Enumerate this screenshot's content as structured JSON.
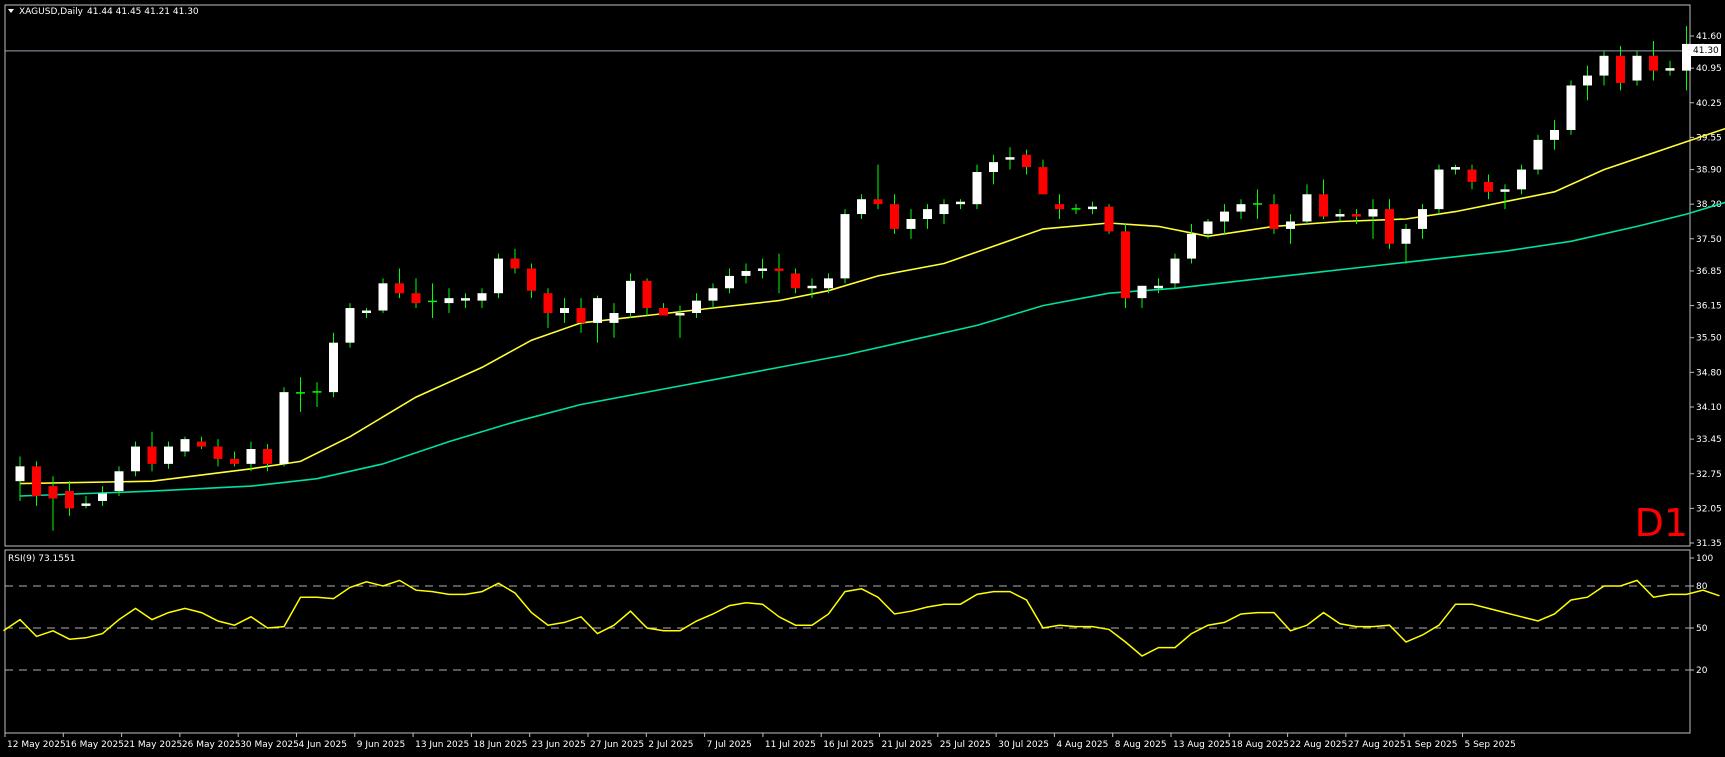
{
  "header": {
    "symbol_menu_icon": "triangle-down-icon",
    "title": "XAGUSD,Daily",
    "ohlc": "41.44 41.45 41.21 41.30"
  },
  "timeframe_label": "D1",
  "current_price_label": "41.30",
  "rsi_panel": {
    "title": "RSI(9) 73.1551"
  },
  "colors": {
    "background": "#000000",
    "bull": "#ffffff",
    "bear": "#ff0000",
    "doji": "#00ff00",
    "ma_fast": "#ffff33",
    "ma_slow": "#00e0a0",
    "rsi": "#ffff00",
    "frame": "#c0c0c0",
    "timeframe_label": "#ff0000"
  },
  "chart_data": [
    {
      "type": "candlestick",
      "symbol": "XAGUSD",
      "timeframe": "Daily",
      "ylim": [
        31.35,
        41.6
      ],
      "yticks": [
        "41.60",
        "40.95",
        "40.25",
        "39.55",
        "38.90",
        "38.20",
        "37.50",
        "36.85",
        "36.15",
        "35.50",
        "34.80",
        "34.10",
        "33.45",
        "32.75",
        "32.05",
        "31.35"
      ],
      "xlabels": [
        "12 May 2025",
        "16 May 2025",
        "21 May 2025",
        "26 May 2025",
        "30 May 2025",
        "4 Jun 2025",
        "9 Jun 2025",
        "13 Jun 2025",
        "18 Jun 2025",
        "23 Jun 2025",
        "27 Jun 2025",
        "2 Jul 2025",
        "7 Jul 2025",
        "11 Jul 2025",
        "16 Jul 2025",
        "21 Jul 2025",
        "25 Jul 2025",
        "30 Jul 2025",
        "4 Aug 2025",
        "8 Aug 2025",
        "13 Aug 2025",
        "18 Aug 2025",
        "22 Aug 2025",
        "27 Aug 2025",
        "1 Sep 2025",
        "5 Sep 2025"
      ],
      "current_price": 41.3,
      "candles": [
        {
          "o": 32.6,
          "h": 33.1,
          "l": 32.2,
          "c": 32.9
        },
        {
          "o": 32.9,
          "h": 33.0,
          "l": 32.1,
          "c": 32.3
        },
        {
          "o": 32.5,
          "h": 32.7,
          "l": 31.6,
          "c": 32.25
        },
        {
          "o": 32.4,
          "h": 32.6,
          "l": 31.9,
          "c": 32.05
        },
        {
          "o": 32.1,
          "h": 32.3,
          "l": 32.05,
          "c": 32.15
        },
        {
          "o": 32.2,
          "h": 32.5,
          "l": 32.1,
          "c": 32.35
        },
        {
          "o": 32.4,
          "h": 32.9,
          "l": 32.3,
          "c": 32.8
        },
        {
          "o": 32.8,
          "h": 33.4,
          "l": 32.7,
          "c": 33.3
        },
        {
          "o": 33.3,
          "h": 33.6,
          "l": 32.8,
          "c": 32.95
        },
        {
          "o": 32.95,
          "h": 33.4,
          "l": 32.85,
          "c": 33.3
        },
        {
          "o": 33.2,
          "h": 33.5,
          "l": 33.1,
          "c": 33.45
        },
        {
          "o": 33.4,
          "h": 33.5,
          "l": 33.25,
          "c": 33.3
        },
        {
          "o": 33.3,
          "h": 33.45,
          "l": 32.9,
          "c": 33.05
        },
        {
          "o": 33.05,
          "h": 33.2,
          "l": 32.9,
          "c": 32.95
        },
        {
          "o": 32.95,
          "h": 33.4,
          "l": 32.8,
          "c": 33.25
        },
        {
          "o": 33.25,
          "h": 33.35,
          "l": 32.8,
          "c": 32.95
        },
        {
          "o": 32.95,
          "h": 34.5,
          "l": 32.9,
          "c": 34.4
        },
        {
          "o": 34.4,
          "h": 34.7,
          "l": 34.0,
          "c": 34.4
        },
        {
          "o": 34.4,
          "h": 34.6,
          "l": 34.1,
          "c": 34.42
        },
        {
          "o": 34.4,
          "h": 35.6,
          "l": 34.3,
          "c": 35.4
        },
        {
          "o": 35.4,
          "h": 36.2,
          "l": 35.3,
          "c": 36.1
        },
        {
          "o": 36.0,
          "h": 36.1,
          "l": 35.9,
          "c": 36.05
        },
        {
          "o": 36.05,
          "h": 36.7,
          "l": 36.0,
          "c": 36.6
        },
        {
          "o": 36.6,
          "h": 36.9,
          "l": 36.3,
          "c": 36.4
        },
        {
          "o": 36.4,
          "h": 36.7,
          "l": 36.1,
          "c": 36.2
        },
        {
          "o": 36.25,
          "h": 36.6,
          "l": 35.9,
          "c": 36.25
        },
        {
          "o": 36.2,
          "h": 36.5,
          "l": 36.0,
          "c": 36.3
        },
        {
          "o": 36.25,
          "h": 36.4,
          "l": 36.1,
          "c": 36.3
        },
        {
          "o": 36.25,
          "h": 36.5,
          "l": 36.1,
          "c": 36.4
        },
        {
          "o": 36.4,
          "h": 37.2,
          "l": 36.3,
          "c": 37.1
        },
        {
          "o": 37.1,
          "h": 37.3,
          "l": 36.8,
          "c": 36.9
        },
        {
          "o": 36.9,
          "h": 37.0,
          "l": 36.3,
          "c": 36.45
        },
        {
          "o": 36.4,
          "h": 36.5,
          "l": 35.7,
          "c": 36.0
        },
        {
          "o": 36.0,
          "h": 36.3,
          "l": 35.8,
          "c": 36.1
        },
        {
          "o": 36.1,
          "h": 36.3,
          "l": 35.6,
          "c": 35.8
        },
        {
          "o": 35.8,
          "h": 36.35,
          "l": 35.4,
          "c": 36.3
        },
        {
          "o": 35.8,
          "h": 36.2,
          "l": 35.5,
          "c": 36.0
        },
        {
          "o": 36.0,
          "h": 36.8,
          "l": 35.9,
          "c": 36.65
        },
        {
          "o": 36.65,
          "h": 36.7,
          "l": 35.95,
          "c": 36.1
        },
        {
          "o": 36.1,
          "h": 36.2,
          "l": 35.95,
          "c": 35.95
        },
        {
          "o": 35.95,
          "h": 36.15,
          "l": 35.5,
          "c": 36.0
        },
        {
          "o": 36.0,
          "h": 36.4,
          "l": 35.9,
          "c": 36.25
        },
        {
          "o": 36.25,
          "h": 36.6,
          "l": 36.1,
          "c": 36.5
        },
        {
          "o": 36.5,
          "h": 36.9,
          "l": 36.4,
          "c": 36.75
        },
        {
          "o": 36.75,
          "h": 37.0,
          "l": 36.6,
          "c": 36.85
        },
        {
          "o": 36.85,
          "h": 37.1,
          "l": 36.7,
          "c": 36.9
        },
        {
          "o": 36.9,
          "h": 37.2,
          "l": 36.4,
          "c": 36.85
        },
        {
          "o": 36.8,
          "h": 36.9,
          "l": 36.4,
          "c": 36.5
        },
        {
          "o": 36.5,
          "h": 36.7,
          "l": 36.3,
          "c": 36.55
        },
        {
          "o": 36.5,
          "h": 36.8,
          "l": 36.4,
          "c": 36.7
        },
        {
          "o": 36.7,
          "h": 38.1,
          "l": 36.6,
          "c": 38.0
        },
        {
          "o": 38.0,
          "h": 38.4,
          "l": 37.9,
          "c": 38.3
        },
        {
          "o": 38.3,
          "h": 39.0,
          "l": 38.1,
          "c": 38.2
        },
        {
          "o": 38.2,
          "h": 38.4,
          "l": 37.6,
          "c": 37.7
        },
        {
          "o": 37.7,
          "h": 38.1,
          "l": 37.5,
          "c": 37.9
        },
        {
          "o": 37.9,
          "h": 38.2,
          "l": 37.7,
          "c": 38.1
        },
        {
          "o": 38.0,
          "h": 38.3,
          "l": 37.8,
          "c": 38.2
        },
        {
          "o": 38.2,
          "h": 38.3,
          "l": 38.1,
          "c": 38.25
        },
        {
          "o": 38.2,
          "h": 39.0,
          "l": 38.1,
          "c": 38.85
        },
        {
          "o": 38.85,
          "h": 39.2,
          "l": 38.6,
          "c": 39.05
        },
        {
          "o": 39.1,
          "h": 39.35,
          "l": 38.9,
          "c": 39.15
        },
        {
          "o": 39.2,
          "h": 39.3,
          "l": 38.8,
          "c": 38.95
        },
        {
          "o": 38.95,
          "h": 39.1,
          "l": 38.4,
          "c": 38.4
        },
        {
          "o": 38.2,
          "h": 38.4,
          "l": 37.9,
          "c": 38.1
        },
        {
          "o": 38.1,
          "h": 38.2,
          "l": 38.0,
          "c": 38.12
        },
        {
          "o": 38.1,
          "h": 38.25,
          "l": 38.0,
          "c": 38.15
        },
        {
          "o": 38.15,
          "h": 38.2,
          "l": 37.6,
          "c": 37.65
        },
        {
          "o": 37.65,
          "h": 37.8,
          "l": 36.1,
          "c": 36.3
        },
        {
          "o": 36.3,
          "h": 36.5,
          "l": 36.1,
          "c": 36.55
        },
        {
          "o": 36.5,
          "h": 36.7,
          "l": 36.4,
          "c": 36.55
        },
        {
          "o": 36.6,
          "h": 37.2,
          "l": 36.5,
          "c": 37.1
        },
        {
          "o": 37.1,
          "h": 37.8,
          "l": 37.0,
          "c": 37.6
        },
        {
          "o": 37.6,
          "h": 37.9,
          "l": 37.5,
          "c": 37.85
        },
        {
          "o": 37.85,
          "h": 38.2,
          "l": 37.6,
          "c": 38.05
        },
        {
          "o": 38.05,
          "h": 38.3,
          "l": 37.9,
          "c": 38.2
        },
        {
          "o": 38.2,
          "h": 38.5,
          "l": 37.9,
          "c": 38.22
        },
        {
          "o": 38.2,
          "h": 38.4,
          "l": 37.6,
          "c": 37.7
        },
        {
          "o": 37.7,
          "h": 38.0,
          "l": 37.4,
          "c": 37.85
        },
        {
          "o": 37.85,
          "h": 38.6,
          "l": 37.8,
          "c": 38.4
        },
        {
          "o": 38.4,
          "h": 38.7,
          "l": 37.9,
          "c": 37.95
        },
        {
          "o": 37.95,
          "h": 38.1,
          "l": 37.85,
          "c": 38.0
        },
        {
          "o": 38.0,
          "h": 38.1,
          "l": 37.8,
          "c": 37.95
        },
        {
          "o": 37.95,
          "h": 38.3,
          "l": 37.5,
          "c": 38.1
        },
        {
          "o": 38.1,
          "h": 38.3,
          "l": 37.3,
          "c": 37.4
        },
        {
          "o": 37.4,
          "h": 37.8,
          "l": 37.0,
          "c": 37.7
        },
        {
          "o": 37.7,
          "h": 38.2,
          "l": 37.5,
          "c": 38.1
        },
        {
          "o": 38.1,
          "h": 39.0,
          "l": 38.0,
          "c": 38.9
        },
        {
          "o": 38.9,
          "h": 39.0,
          "l": 38.8,
          "c": 38.95
        },
        {
          "o": 38.9,
          "h": 39.0,
          "l": 38.5,
          "c": 38.65
        },
        {
          "o": 38.65,
          "h": 38.8,
          "l": 38.3,
          "c": 38.45
        },
        {
          "o": 38.45,
          "h": 38.6,
          "l": 38.1,
          "c": 38.5
        },
        {
          "o": 38.5,
          "h": 39.0,
          "l": 38.4,
          "c": 38.9
        },
        {
          "o": 38.9,
          "h": 39.6,
          "l": 38.8,
          "c": 39.5
        },
        {
          "o": 39.5,
          "h": 39.9,
          "l": 39.3,
          "c": 39.7
        },
        {
          "o": 39.7,
          "h": 40.7,
          "l": 39.6,
          "c": 40.6
        },
        {
          "o": 40.6,
          "h": 41.0,
          "l": 40.3,
          "c": 40.8
        },
        {
          "o": 40.8,
          "h": 41.3,
          "l": 40.6,
          "c": 41.2
        },
        {
          "o": 41.2,
          "h": 41.4,
          "l": 40.5,
          "c": 40.65
        },
        {
          "o": 40.7,
          "h": 41.3,
          "l": 40.6,
          "c": 41.2
        },
        {
          "o": 41.2,
          "h": 41.5,
          "l": 40.7,
          "c": 40.9
        },
        {
          "o": 40.9,
          "h": 41.1,
          "l": 40.8,
          "c": 40.95
        },
        {
          "o": 40.9,
          "h": 41.8,
          "l": 40.5,
          "c": 41.44
        },
        {
          "o": 41.44,
          "h": 41.45,
          "l": 41.21,
          "c": 41.3
        }
      ],
      "moving_averages": [
        {
          "color": "#ffff33",
          "points": [
            [
              0,
              32.55
            ],
            [
              8,
              32.6
            ],
            [
              14,
              32.85
            ],
            [
              17,
              33.0
            ],
            [
              20,
              33.5
            ],
            [
              24,
              34.3
            ],
            [
              28,
              34.9
            ],
            [
              31,
              35.45
            ],
            [
              34,
              35.8
            ],
            [
              38,
              35.95
            ],
            [
              42,
              36.1
            ],
            [
              46,
              36.25
            ],
            [
              49,
              36.45
            ],
            [
              52,
              36.75
            ],
            [
              56,
              37.0
            ],
            [
              59,
              37.35
            ],
            [
              62,
              37.7
            ],
            [
              66,
              37.82
            ],
            [
              69,
              37.75
            ],
            [
              72,
              37.55
            ],
            [
              76,
              37.75
            ],
            [
              80,
              37.85
            ],
            [
              84,
              37.9
            ],
            [
              87,
              38.05
            ],
            [
              90,
              38.25
            ],
            [
              93,
              38.45
            ],
            [
              96,
              38.9
            ],
            [
              100,
              39.35
            ],
            [
              104,
              39.8
            ]
          ]
        },
        {
          "color": "#00e0a0",
          "points": [
            [
              0,
              32.3
            ],
            [
              8,
              32.4
            ],
            [
              14,
              32.5
            ],
            [
              18,
              32.65
            ],
            [
              22,
              32.95
            ],
            [
              26,
              33.4
            ],
            [
              30,
              33.8
            ],
            [
              34,
              34.15
            ],
            [
              38,
              34.4
            ],
            [
              42,
              34.65
            ],
            [
              46,
              34.9
            ],
            [
              50,
              35.15
            ],
            [
              54,
              35.45
            ],
            [
              58,
              35.75
            ],
            [
              62,
              36.15
            ],
            [
              66,
              36.4
            ],
            [
              70,
              36.5
            ],
            [
              74,
              36.65
            ],
            [
              78,
              36.8
            ],
            [
              82,
              36.95
            ],
            [
              86,
              37.1
            ],
            [
              90,
              37.25
            ],
            [
              94,
              37.45
            ],
            [
              98,
              37.75
            ],
            [
              101,
              38.0
            ],
            [
              104,
              38.3
            ]
          ]
        }
      ]
    },
    {
      "type": "line",
      "title": "RSI(9) 73.1551",
      "ylim": [
        0,
        100
      ],
      "yticks": [
        "100",
        "80",
        "50",
        "20"
      ],
      "levels": [
        80,
        50,
        20
      ],
      "series": [
        {
          "values": [
            48,
            56,
            44,
            48,
            42,
            43,
            46,
            56,
            64,
            56,
            61,
            64,
            61,
            55,
            52,
            58,
            50,
            51,
            72,
            72,
            71,
            79,
            83,
            80,
            84,
            77,
            76,
            74,
            74,
            76,
            82,
            75,
            61,
            52,
            54,
            58,
            46,
            52,
            62,
            50,
            48,
            48,
            55,
            60,
            66,
            68,
            67,
            58,
            52,
            52,
            60,
            76,
            78,
            72,
            60,
            62,
            65,
            67,
            67,
            74,
            76,
            76,
            70,
            50,
            52,
            51,
            51,
            49,
            40,
            30,
            36,
            36,
            46,
            52,
            54,
            60,
            61,
            61,
            48,
            52,
            61,
            53,
            51,
            51,
            52,
            40,
            45,
            52,
            67,
            67,
            64,
            61,
            58,
            55,
            60,
            70,
            72,
            80,
            80,
            84,
            72,
            74,
            74,
            77,
            73
          ]
        }
      ]
    }
  ]
}
